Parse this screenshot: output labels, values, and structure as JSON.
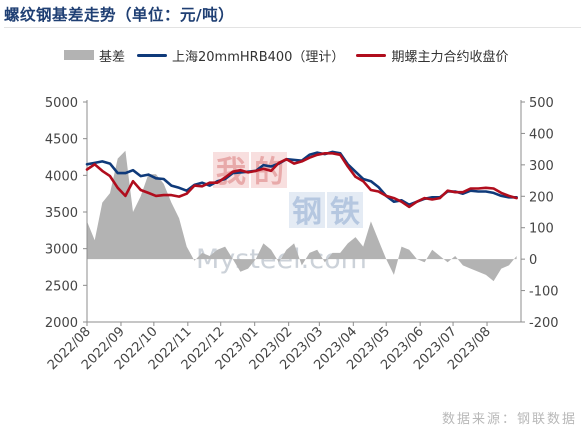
{
  "title": "螺纹钢基差走势（单位：元/吨）",
  "source": "数据来源：钢联数据",
  "watermark": {
    "cn": "我的钢铁",
    "en": "Mysteel.com"
  },
  "colors": {
    "basis": "#b3b3b3",
    "spot": "#0f3a7a",
    "futures": "#b00d1d",
    "title": "#1f3f73"
  },
  "chart_data": {
    "type": "line",
    "title": "螺纹钢基差走势（单位：元/吨）",
    "legend_position": "top",
    "grid": false,
    "left_axis": {
      "ylim": [
        2000,
        5000
      ],
      "ticks": [
        2000,
        2500,
        3000,
        3500,
        4000,
        4500,
        5000
      ]
    },
    "right_axis": {
      "ylim": [
        -200,
        500
      ],
      "ticks": [
        -200,
        -100,
        0,
        100,
        200,
        300,
        400,
        500
      ]
    },
    "x_tick_labels": [
      "2022/08",
      "2022/09",
      "2022/10",
      "2022/11",
      "2022/12",
      "2023/01",
      "2023/02",
      "2023/03",
      "2023/04",
      "2023/05",
      "2023/06",
      "2023/07",
      "2023/08"
    ],
    "x": [
      "2022/08/01",
      "2022/08/08",
      "2022/08/15",
      "2022/08/22",
      "2022/08/29",
      "2022/09/05",
      "2022/09/12",
      "2022/09/19",
      "2022/09/26",
      "2022/10/03",
      "2022/10/10",
      "2022/10/17",
      "2022/10/24",
      "2022/10/31",
      "2022/11/07",
      "2022/11/14",
      "2022/11/21",
      "2022/11/28",
      "2022/12/05",
      "2022/12/12",
      "2022/12/19",
      "2022/12/26",
      "2023/01/02",
      "2023/01/09",
      "2023/01/16",
      "2023/01/23",
      "2023/01/30",
      "2023/02/06",
      "2023/02/13",
      "2023/02/20",
      "2023/02/27",
      "2023/03/06",
      "2023/03/13",
      "2023/03/20",
      "2023/03/27",
      "2023/04/03",
      "2023/04/10",
      "2023/04/17",
      "2023/04/24",
      "2023/05/01",
      "2023/05/08",
      "2023/05/15",
      "2023/05/22",
      "2023/05/29",
      "2023/06/05",
      "2023/06/12",
      "2023/06/19",
      "2023/06/26",
      "2023/07/03",
      "2023/07/10",
      "2023/07/17",
      "2023/07/24",
      "2023/07/31",
      "2023/08/07",
      "2023/08/14",
      "2023/08/21",
      "2023/08/28"
    ],
    "series": [
      {
        "name": "基差",
        "type": "area",
        "axis": "right",
        "values": [
          120,
          60,
          180,
          210,
          320,
          345,
          150,
          200,
          270,
          270,
          240,
          180,
          130,
          40,
          -5,
          20,
          10,
          30,
          40,
          0,
          -40,
          -30,
          0,
          50,
          30,
          -10,
          30,
          50,
          -20,
          20,
          30,
          -10,
          20,
          20,
          50,
          70,
          40,
          120,
          60,
          0,
          -50,
          40,
          30,
          0,
          -10,
          30,
          10,
          -10,
          10,
          -20,
          -30,
          -40,
          -50,
          -70,
          -30,
          -20,
          10
        ]
      },
      {
        "name": "上海20mmHRB400（理计）",
        "type": "line",
        "axis": "left",
        "values": [
          4150,
          4170,
          4190,
          4160,
          4030,
          4030,
          4070,
          3990,
          4010,
          3960,
          3950,
          3860,
          3830,
          3790,
          3870,
          3900,
          3860,
          3920,
          3950,
          4030,
          4040,
          4050,
          4060,
          4140,
          4120,
          4160,
          4220,
          4210,
          4200,
          4280,
          4310,
          4290,
          4320,
          4300,
          4150,
          4050,
          3950,
          3920,
          3840,
          3720,
          3640,
          3660,
          3600,
          3640,
          3680,
          3700,
          3700,
          3780,
          3780,
          3750,
          3790,
          3780,
          3780,
          3760,
          3720,
          3700,
          3700
        ]
      },
      {
        "name": "期螺主力合约收盘价",
        "type": "line",
        "axis": "left",
        "values": [
          4080,
          4150,
          4060,
          3990,
          3830,
          3720,
          3920,
          3800,
          3760,
          3720,
          3730,
          3730,
          3710,
          3750,
          3860,
          3850,
          3900,
          3900,
          3970,
          4050,
          4070,
          4040,
          4060,
          4090,
          4060,
          4170,
          4220,
          4160,
          4190,
          4240,
          4280,
          4300,
          4300,
          4280,
          4120,
          3980,
          3920,
          3800,
          3780,
          3720,
          3690,
          3640,
          3570,
          3640,
          3690,
          3670,
          3690,
          3790,
          3770,
          3770,
          3820,
          3820,
          3830,
          3820,
          3760,
          3720,
          3690
        ]
      }
    ]
  }
}
